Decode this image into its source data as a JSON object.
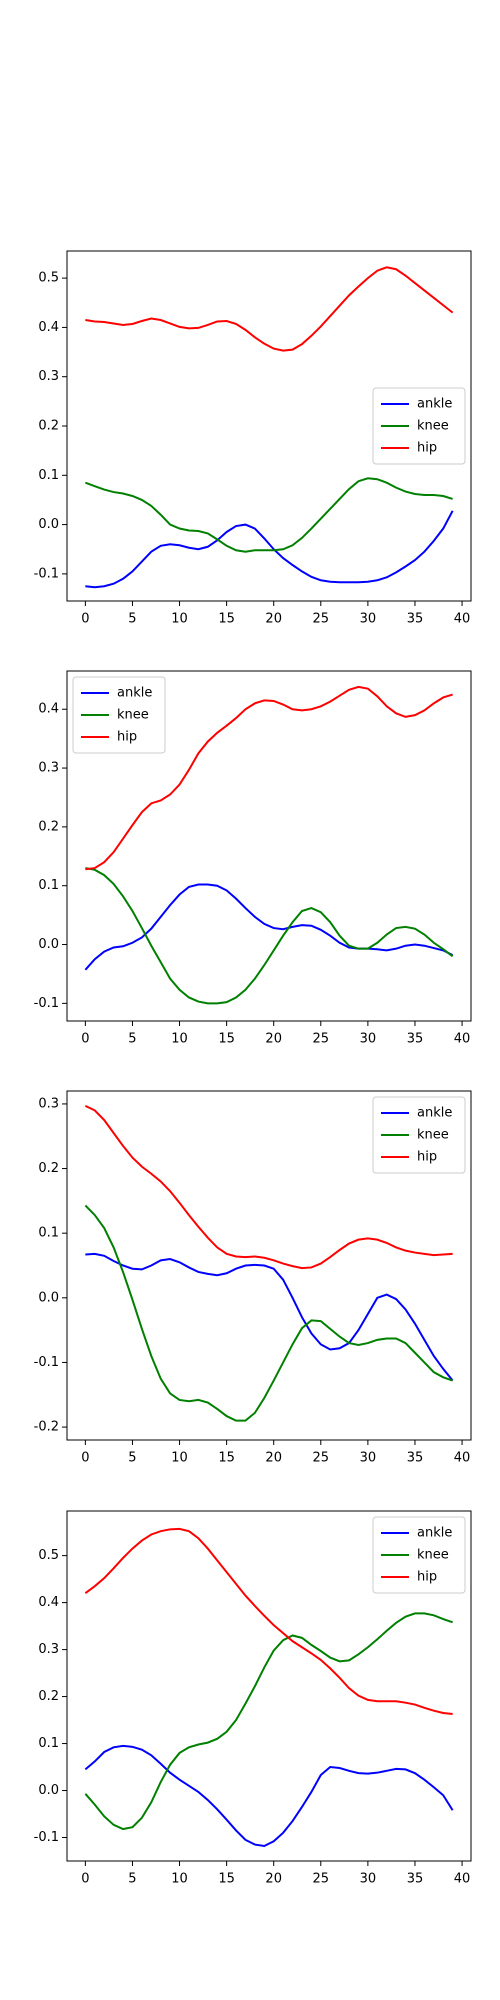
{
  "chart_data": [
    {
      "type": "line",
      "legend": "center right",
      "x": [
        0,
        1,
        2,
        3,
        4,
        5,
        6,
        7,
        8,
        9,
        10,
        11,
        12,
        13,
        14,
        15,
        16,
        17,
        18,
        19,
        20,
        21,
        22,
        23,
        24,
        25,
        26,
        27,
        28,
        29,
        30,
        31,
        32,
        33,
        34,
        35,
        36,
        37,
        38,
        39
      ],
      "xlim": [
        -1.95,
        40.95
      ],
      "xticks": [
        0,
        5,
        10,
        15,
        20,
        25,
        30,
        35,
        40
      ],
      "ylim": [
        -0.155,
        0.555
      ],
      "yticks": [
        -0.1,
        {
          "value": 0,
          "label": "0.0"
        },
        0.1,
        0.2,
        0.3,
        0.4,
        0.5
      ],
      "series": [
        {
          "name": "ankle",
          "color": "#0000ff",
          "values": [
            -0.125,
            -0.127,
            -0.125,
            -0.12,
            -0.11,
            -0.095,
            -0.075,
            -0.055,
            -0.043,
            -0.04,
            -0.042,
            -0.047,
            -0.05,
            -0.045,
            -0.032,
            -0.015,
            -0.003,
            0.0,
            -0.008,
            -0.028,
            -0.05,
            -0.068,
            -0.082,
            -0.095,
            -0.106,
            -0.113,
            -0.116,
            -0.117,
            -0.117,
            -0.117,
            -0.116,
            -0.113,
            -0.107,
            -0.097,
            -0.085,
            -0.072,
            -0.055,
            -0.033,
            -0.008,
            0.028
          ]
        },
        {
          "name": "knee",
          "color": "#008000",
          "values": [
            0.085,
            0.078,
            0.071,
            0.066,
            0.063,
            0.058,
            0.05,
            0.038,
            0.02,
            0.0,
            -0.008,
            -0.012,
            -0.013,
            -0.018,
            -0.03,
            -0.043,
            -0.052,
            -0.055,
            -0.052,
            -0.052,
            -0.052,
            -0.05,
            -0.042,
            -0.027,
            -0.008,
            0.012,
            0.032,
            0.052,
            0.072,
            0.088,
            0.094,
            0.092,
            0.085,
            0.075,
            0.067,
            0.062,
            0.06,
            0.06,
            0.058,
            0.052
          ]
        },
        {
          "name": "hip",
          "color": "#ff0000",
          "values": [
            0.415,
            0.412,
            0.411,
            0.408,
            0.405,
            0.407,
            0.413,
            0.418,
            0.415,
            0.408,
            0.401,
            0.398,
            0.399,
            0.405,
            0.412,
            0.413,
            0.407,
            0.395,
            0.38,
            0.367,
            0.357,
            0.353,
            0.355,
            0.366,
            0.383,
            0.402,
            0.423,
            0.444,
            0.465,
            0.483,
            0.5,
            0.515,
            0.522,
            0.518,
            0.505,
            0.49,
            0.475,
            0.46,
            0.445,
            0.43
          ]
        }
      ]
    },
    {
      "type": "line",
      "legend": "upper left",
      "x": [
        0,
        1,
        2,
        3,
        4,
        5,
        6,
        7,
        8,
        9,
        10,
        11,
        12,
        13,
        14,
        15,
        16,
        17,
        18,
        19,
        20,
        21,
        22,
        23,
        24,
        25,
        26,
        27,
        28,
        29,
        30,
        31,
        32,
        33,
        34,
        35,
        36,
        37,
        38,
        39
      ],
      "xlim": [
        -1.95,
        40.95
      ],
      "xticks": [
        0,
        5,
        10,
        15,
        20,
        25,
        30,
        35,
        40
      ],
      "ylim": [
        -0.13,
        0.465
      ],
      "yticks": [
        -0.1,
        {
          "value": 0,
          "label": "0.0"
        },
        0.1,
        0.2,
        0.3,
        0.4
      ],
      "series": [
        {
          "name": "ankle",
          "color": "#0000ff",
          "values": [
            -0.043,
            -0.025,
            -0.012,
            -0.005,
            -0.003,
            0.003,
            0.012,
            0.027,
            0.047,
            0.067,
            0.085,
            0.098,
            0.102,
            0.102,
            0.1,
            0.092,
            0.078,
            0.062,
            0.047,
            0.035,
            0.028,
            0.026,
            0.03,
            0.033,
            0.032,
            0.025,
            0.015,
            0.003,
            -0.005,
            -0.007,
            -0.007,
            -0.008,
            -0.01,
            -0.007,
            -0.002,
            0.0,
            -0.002,
            -0.006,
            -0.01,
            -0.018
          ]
        },
        {
          "name": "knee",
          "color": "#008000",
          "values": [
            0.13,
            0.127,
            0.118,
            0.103,
            0.082,
            0.057,
            0.028,
            -0.002,
            -0.03,
            -0.058,
            -0.077,
            -0.09,
            -0.097,
            -0.1,
            -0.1,
            -0.098,
            -0.09,
            -0.077,
            -0.058,
            -0.035,
            -0.01,
            0.015,
            0.038,
            0.057,
            0.062,
            0.055,
            0.038,
            0.015,
            -0.002,
            -0.007,
            -0.007,
            0.003,
            0.017,
            0.028,
            0.03,
            0.027,
            0.017,
            0.003,
            -0.008,
            -0.02
          ]
        },
        {
          "name": "hip",
          "color": "#ff0000",
          "values": [
            0.128,
            0.13,
            0.14,
            0.157,
            0.18,
            0.203,
            0.225,
            0.24,
            0.245,
            0.255,
            0.272,
            0.297,
            0.325,
            0.345,
            0.36,
            0.372,
            0.385,
            0.4,
            0.41,
            0.415,
            0.414,
            0.408,
            0.4,
            0.398,
            0.4,
            0.405,
            0.413,
            0.423,
            0.433,
            0.438,
            0.435,
            0.422,
            0.405,
            0.393,
            0.387,
            0.39,
            0.398,
            0.41,
            0.42,
            0.425
          ]
        }
      ]
    },
    {
      "type": "line",
      "legend": "upper right",
      "x": [
        0,
        1,
        2,
        3,
        4,
        5,
        6,
        7,
        8,
        9,
        10,
        11,
        12,
        13,
        14,
        15,
        16,
        17,
        18,
        19,
        20,
        21,
        22,
        23,
        24,
        25,
        26,
        27,
        28,
        29,
        30,
        31,
        32,
        33,
        34,
        35,
        36,
        37,
        38,
        39
      ],
      "xlim": [
        -1.95,
        40.95
      ],
      "xticks": [
        0,
        5,
        10,
        15,
        20,
        25,
        30,
        35,
        40
      ],
      "ylim": [
        -0.22,
        0.32
      ],
      "yticks": [
        -0.2,
        -0.1,
        {
          "value": 0,
          "label": "0.0"
        },
        0.1,
        0.2,
        0.3
      ],
      "series": [
        {
          "name": "ankle",
          "color": "#0000ff",
          "values": [
            0.067,
            0.068,
            0.065,
            0.057,
            0.05,
            0.045,
            0.044,
            0.05,
            0.058,
            0.06,
            0.055,
            0.047,
            0.04,
            0.037,
            0.035,
            0.038,
            0.045,
            0.05,
            0.051,
            0.05,
            0.045,
            0.028,
            0.0,
            -0.03,
            -0.055,
            -0.072,
            -0.08,
            -0.078,
            -0.07,
            -0.05,
            -0.025,
            0.0,
            0.005,
            -0.002,
            -0.018,
            -0.04,
            -0.065,
            -0.09,
            -0.11,
            -0.128
          ]
        },
        {
          "name": "knee",
          "color": "#008000",
          "values": [
            0.143,
            0.128,
            0.108,
            0.078,
            0.04,
            -0.003,
            -0.048,
            -0.09,
            -0.125,
            -0.148,
            -0.158,
            -0.16,
            -0.158,
            -0.162,
            -0.172,
            -0.183,
            -0.19,
            -0.19,
            -0.178,
            -0.155,
            -0.128,
            -0.1,
            -0.072,
            -0.047,
            -0.035,
            -0.036,
            -0.048,
            -0.06,
            -0.07,
            -0.073,
            -0.07,
            -0.065,
            -0.063,
            -0.063,
            -0.07,
            -0.085,
            -0.1,
            -0.115,
            -0.123,
            -0.128
          ]
        },
        {
          "name": "hip",
          "color": "#ff0000",
          "values": [
            0.297,
            0.29,
            0.275,
            0.255,
            0.235,
            0.217,
            0.203,
            0.192,
            0.18,
            0.165,
            0.147,
            0.128,
            0.11,
            0.093,
            0.078,
            0.068,
            0.064,
            0.063,
            0.064,
            0.062,
            0.058,
            0.053,
            0.049,
            0.046,
            0.047,
            0.053,
            0.063,
            0.074,
            0.084,
            0.09,
            0.092,
            0.09,
            0.085,
            0.078,
            0.073,
            0.07,
            0.068,
            0.066,
            0.067,
            0.068
          ]
        }
      ]
    },
    {
      "type": "line",
      "legend": "upper right",
      "x": [
        0,
        1,
        2,
        3,
        4,
        5,
        6,
        7,
        8,
        9,
        10,
        11,
        12,
        13,
        14,
        15,
        16,
        17,
        18,
        19,
        20,
        21,
        22,
        23,
        24,
        25,
        26,
        27,
        28,
        29,
        30,
        31,
        32,
        33,
        34,
        35,
        36,
        37,
        38,
        39
      ],
      "xlim": [
        -1.95,
        40.95
      ],
      "xticks": [
        0,
        5,
        10,
        15,
        20,
        25,
        30,
        35,
        40
      ],
      "ylim": [
        -0.15,
        0.595
      ],
      "yticks": [
        -0.1,
        {
          "value": 0,
          "label": "0.0"
        },
        0.1,
        0.2,
        0.3,
        0.4,
        0.5
      ],
      "series": [
        {
          "name": "ankle",
          "color": "#0000ff",
          "values": [
            0.045,
            0.062,
            0.082,
            0.092,
            0.095,
            0.093,
            0.087,
            0.075,
            0.057,
            0.038,
            0.023,
            0.01,
            -0.003,
            -0.02,
            -0.04,
            -0.062,
            -0.085,
            -0.105,
            -0.115,
            -0.118,
            -0.108,
            -0.09,
            -0.065,
            -0.035,
            -0.003,
            0.033,
            0.05,
            0.048,
            0.042,
            0.037,
            0.036,
            0.038,
            0.042,
            0.046,
            0.045,
            0.037,
            0.023,
            0.007,
            -0.01,
            -0.042
          ]
        },
        {
          "name": "knee",
          "color": "#008000",
          "values": [
            -0.007,
            -0.03,
            -0.055,
            -0.073,
            -0.082,
            -0.078,
            -0.058,
            -0.025,
            0.018,
            0.055,
            0.08,
            0.092,
            0.098,
            0.102,
            0.11,
            0.125,
            0.15,
            0.185,
            0.222,
            0.262,
            0.298,
            0.32,
            0.33,
            0.325,
            0.31,
            0.297,
            0.283,
            0.275,
            0.277,
            0.29,
            0.305,
            0.322,
            0.34,
            0.357,
            0.37,
            0.377,
            0.377,
            0.373,
            0.365,
            0.358
          ]
        },
        {
          "name": "hip",
          "color": "#ff0000",
          "values": [
            0.42,
            0.435,
            0.452,
            0.473,
            0.495,
            0.515,
            0.532,
            0.545,
            0.552,
            0.556,
            0.557,
            0.552,
            0.537,
            0.515,
            0.49,
            0.465,
            0.44,
            0.415,
            0.393,
            0.372,
            0.352,
            0.335,
            0.318,
            0.305,
            0.292,
            0.278,
            0.26,
            0.24,
            0.218,
            0.202,
            0.193,
            0.19,
            0.19,
            0.19,
            0.187,
            0.183,
            0.176,
            0.17,
            0.165,
            0.163
          ]
        }
      ]
    }
  ]
}
